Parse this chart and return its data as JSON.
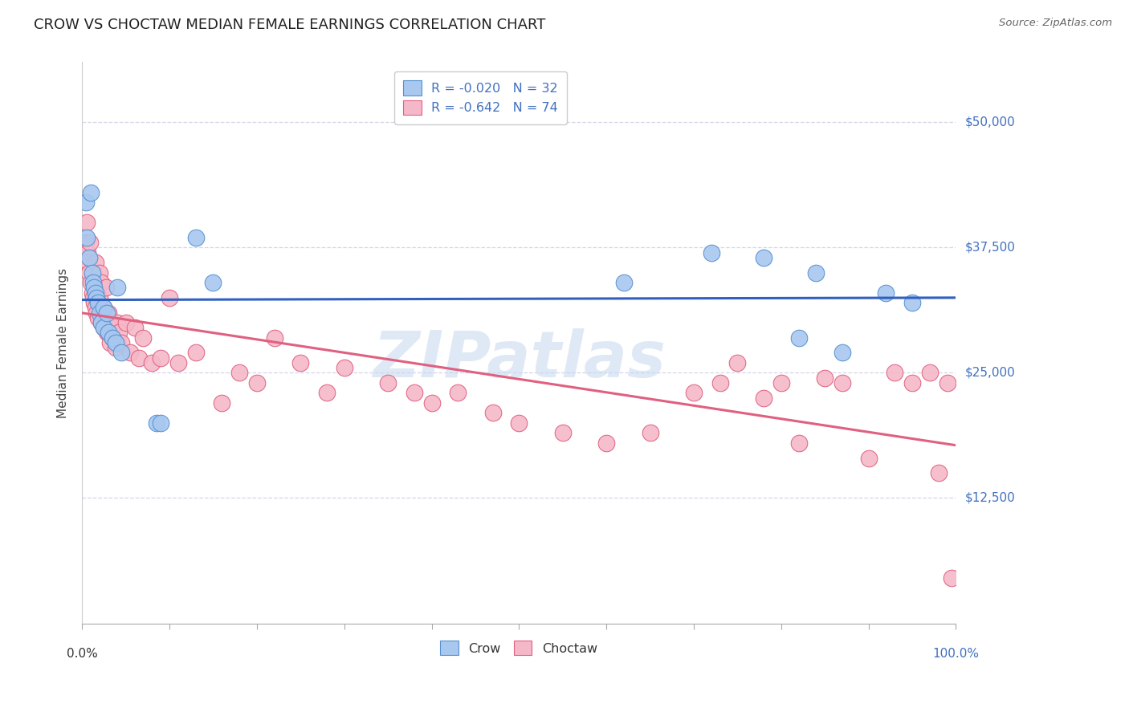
{
  "title": "CROW VS CHOCTAW MEDIAN FEMALE EARNINGS CORRELATION CHART",
  "source_text": "Source: ZipAtlas.com",
  "ylabel": "Median Female Earnings",
  "ytick_labels": [
    "$12,500",
    "$25,000",
    "$37,500",
    "$50,000"
  ],
  "ytick_values": [
    12500,
    25000,
    37500,
    50000
  ],
  "ymin": 0,
  "ymax": 56000,
  "xmin": 0.0,
  "xmax": 1.0,
  "crow_color": "#A8C8F0",
  "crow_edge_color": "#5590D0",
  "choctaw_color": "#F5B8C8",
  "choctaw_edge_color": "#E06080",
  "trend_crow_color": "#3060C0",
  "trend_choctaw_color": "#E06080",
  "right_label_color": "#4070C0",
  "crow_R": "-0.020",
  "crow_N": "32",
  "choctaw_R": "-0.642",
  "choctaw_N": "74",
  "crow_scatter_x": [
    0.004,
    0.005,
    0.008,
    0.01,
    0.012,
    0.013,
    0.014,
    0.015,
    0.016,
    0.018,
    0.02,
    0.022,
    0.025,
    0.025,
    0.028,
    0.03,
    0.035,
    0.038,
    0.04,
    0.045,
    0.085,
    0.09,
    0.13,
    0.15,
    0.62,
    0.72,
    0.78,
    0.82,
    0.84,
    0.87,
    0.92,
    0.95
  ],
  "crow_scatter_y": [
    42000,
    38500,
    36500,
    43000,
    35000,
    34000,
    33500,
    33000,
    32500,
    32000,
    31000,
    30000,
    29500,
    31500,
    31000,
    29000,
    28500,
    28000,
    33500,
    27000,
    20000,
    20000,
    38500,
    34000,
    34000,
    37000,
    36500,
    28500,
    35000,
    27000,
    33000,
    32000
  ],
  "choctaw_scatter_x": [
    0.004,
    0.005,
    0.006,
    0.007,
    0.008,
    0.009,
    0.01,
    0.012,
    0.013,
    0.014,
    0.015,
    0.015,
    0.016,
    0.018,
    0.02,
    0.02,
    0.022,
    0.022,
    0.025,
    0.025,
    0.025,
    0.027,
    0.028,
    0.03,
    0.03,
    0.032,
    0.035,
    0.035,
    0.038,
    0.04,
    0.04,
    0.042,
    0.045,
    0.05,
    0.055,
    0.06,
    0.065,
    0.07,
    0.08,
    0.09,
    0.1,
    0.11,
    0.13,
    0.16,
    0.18,
    0.2,
    0.22,
    0.25,
    0.28,
    0.3,
    0.35,
    0.38,
    0.4,
    0.43,
    0.47,
    0.5,
    0.55,
    0.6,
    0.65,
    0.7,
    0.73,
    0.75,
    0.78,
    0.8,
    0.82,
    0.85,
    0.87,
    0.9,
    0.93,
    0.95,
    0.97,
    0.98,
    0.99,
    0.995
  ],
  "choctaw_scatter_y": [
    38000,
    40000,
    37000,
    36000,
    35000,
    38000,
    34000,
    33000,
    32500,
    32000,
    36000,
    31500,
    31000,
    30500,
    35000,
    32500,
    30000,
    34000,
    31500,
    29500,
    31000,
    33500,
    29000,
    31000,
    29000,
    28000,
    29500,
    28500,
    27500,
    28000,
    30000,
    29000,
    28000,
    30000,
    27000,
    29500,
    26500,
    28500,
    26000,
    26500,
    32500,
    26000,
    27000,
    22000,
    25000,
    24000,
    28500,
    26000,
    23000,
    25500,
    24000,
    23000,
    22000,
    23000,
    21000,
    20000,
    19000,
    18000,
    19000,
    23000,
    24000,
    26000,
    22500,
    24000,
    18000,
    24500,
    24000,
    16500,
    25000,
    24000,
    25000,
    15000,
    24000,
    4500
  ],
  "watermark_text": "ZIPatlas",
  "background_color": "#ffffff",
  "grid_color": "#d5d5e8",
  "title_fontsize": 13,
  "axis_label_fontsize": 11,
  "tick_fontsize": 11,
  "legend_fontsize": 11.5
}
